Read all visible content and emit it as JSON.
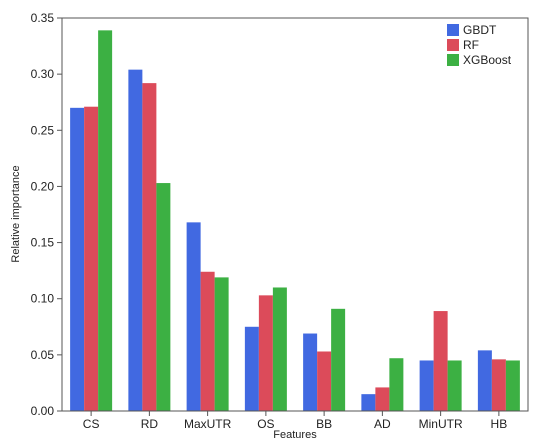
{
  "chart_data": {
    "type": "bar",
    "xlabel": "Features",
    "ylabel": "Relative importance",
    "categories": [
      "CS",
      "RD",
      "MaxUTR",
      "OS",
      "BB",
      "AD",
      "MinUTR",
      "HB"
    ],
    "series": [
      {
        "name": "GBDT",
        "color": "#4169E1",
        "values": [
          0.27,
          0.304,
          0.168,
          0.075,
          0.069,
          0.015,
          0.045,
          0.054
        ]
      },
      {
        "name": "RF",
        "color": "#DC4B5A",
        "values": [
          0.271,
          0.292,
          0.124,
          0.103,
          0.053,
          0.021,
          0.089,
          0.046
        ]
      },
      {
        "name": "XGBoost",
        "color": "#3CB043",
        "values": [
          0.339,
          0.203,
          0.119,
          0.11,
          0.091,
          0.047,
          0.045,
          0.045
        ]
      }
    ],
    "ylim": [
      0,
      0.35
    ],
    "yticks": [
      "0.00",
      "0.05",
      "0.10",
      "0.15",
      "0.20",
      "0.25",
      "0.30",
      "0.35"
    ],
    "grid": false,
    "legend_position": "top-right"
  }
}
